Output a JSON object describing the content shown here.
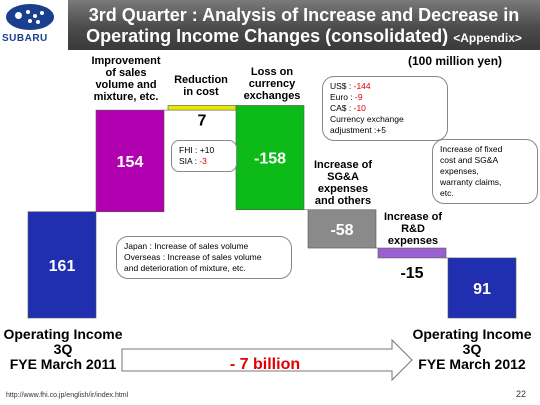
{
  "header": {
    "brand": "SUBARU",
    "title_line1": "3rd Quarter : Analysis of Increase and Decrease in",
    "title_line2": "Operating Income Changes (consolidated)",
    "title_suffix": "<Appendix>"
  },
  "unit": "(100 million yen)",
  "chart_data": {
    "type": "waterfall",
    "items": [
      {
        "key": "start",
        "label": "Operating Income 3Q FYE March 2011",
        "value": 161,
        "display": "161",
        "color": "#1f2fb0"
      },
      {
        "key": "sales",
        "label": "Improvement of sales volume and mixture, etc.",
        "value": 154,
        "display": "154",
        "color": "#b000b0"
      },
      {
        "key": "cost",
        "label": "Reduction in cost",
        "value": 7,
        "display": "7",
        "color": "#e8e800"
      },
      {
        "key": "fx",
        "label": "Loss on currency exchanges",
        "value": -158,
        "display": "-158",
        "color": "#0cba18"
      },
      {
        "key": "sga",
        "label": "Increase of SG&A expenses and others",
        "value": -58,
        "display": "-58",
        "color": "#8a8a8a"
      },
      {
        "key": "rd",
        "label": "Increase of R&D expenses",
        "value": -15,
        "display": "-15",
        "color": "#9a60d0"
      },
      {
        "key": "end",
        "label": "Operating Income 3Q FYE March 2012",
        "value": 91,
        "display": "91",
        "color": "#1f2fb0"
      }
    ],
    "change": "- 7 billion"
  },
  "labels": {
    "sales": [
      "Improvement",
      "of sales",
      "volume and",
      "mixture, etc."
    ],
    "cost": [
      "Reduction",
      "in cost"
    ],
    "fx": [
      "Loss on",
      "currency",
      "exchanges"
    ],
    "sga": [
      "Increase of",
      "SG&A",
      "expenses",
      "and others"
    ],
    "rd": [
      "Increase of",
      "R&D",
      "expenses"
    ],
    "left_axis": [
      "Operating Income",
      "3Q",
      "FYE March 2011"
    ],
    "right_axis": [
      "Operating Income",
      "3Q",
      "FYE March 2012"
    ]
  },
  "callouts": {
    "fx": {
      "l1a": "US$  : ",
      "l1b": "-144",
      "l2a": "Euro : ",
      "l2b": "-9",
      "l3a": "CA$  : ",
      "l3b": "-10",
      "l4": "Currency exchange",
      "l5": "adjustment :+5"
    },
    "cost": {
      "l1": "FHI : +10",
      "l2a": "SIA : ",
      "l2b": "-3"
    },
    "sga": {
      "l1": "Increase of fixed",
      "l2": "cost and SG&A",
      "l3": "expenses,",
      "l4": "warranty claims,",
      "l5": "etc."
    },
    "sales": {
      "l1": "Japan :  Increase of sales volume",
      "l2": "Overseas :  Increase of sales volume",
      "l3": "and deterioration of mixture, etc."
    }
  },
  "footer": {
    "url": "http://www.fhi.co.jp/english/ir/index.html",
    "page": "22"
  }
}
